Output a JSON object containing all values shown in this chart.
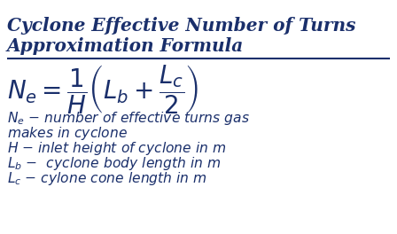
{
  "title_line1": "Cyclone Effective Number of Turns",
  "title_line2": "Approximation Formula",
  "text_color": "#1a2f6b",
  "bg_color": "#ffffff",
  "title_fontsize": 14.5,
  "formula_fontsize": 20,
  "desc_fontsize": 11.2
}
